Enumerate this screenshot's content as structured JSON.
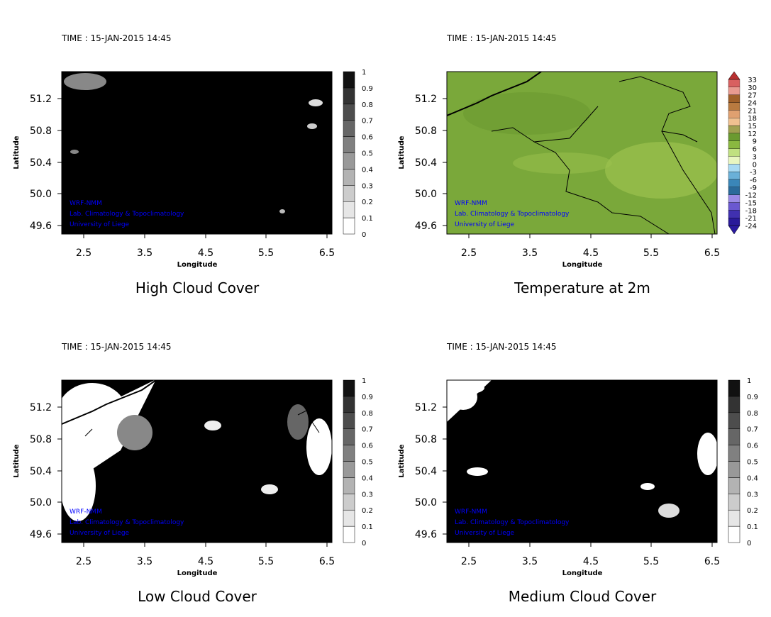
{
  "panels": [
    {
      "id": "high-cloud",
      "time": "TIME : 15-JAN-2015 14:45",
      "title": "High Cloud Cover",
      "type": "cloud"
    },
    {
      "id": "temperature",
      "time": "TIME : 15-JAN-2015 14:45",
      "title": "Temperature at 2m",
      "type": "temp"
    },
    {
      "id": "low-cloud",
      "time": "TIME : 15-JAN-2015 14:45",
      "title": "Low Cloud Cover",
      "type": "cloud"
    },
    {
      "id": "medium-cloud",
      "time": "TIME : 15-JAN-2015 14:45",
      "title": "Medium Cloud Cover",
      "type": "cloud"
    }
  ],
  "axes": {
    "xlabel": "Longitude",
    "ylabel": "Latitude",
    "xticks": [
      "2.5",
      "3.5",
      "4.5",
      "5.5",
      "6.5"
    ],
    "yticks": [
      "51.2",
      "50.8",
      "50.4",
      "50.0",
      "49.6"
    ]
  },
  "credits": [
    "WRF-NMM",
    "Lab. Climatology & Topoclimatology",
    "University of Liege"
  ],
  "cloud_colorbar": {
    "labels": [
      "0",
      "0.1",
      "0.2",
      "0.3",
      "0.4",
      "0.5",
      "0.6",
      "0.7",
      "0.8",
      "0.9",
      "1"
    ]
  },
  "temp_colorbar": {
    "labels": [
      "-24",
      "-21",
      "-18",
      "-15",
      "-12",
      "-9",
      "-6",
      "-3",
      "0",
      "3",
      "6",
      "9",
      "12",
      "15",
      "18",
      "21",
      "24",
      "27",
      "30",
      "33"
    ]
  },
  "colors": {
    "credit": "#0000ff",
    "temp_field": "#7aa83a",
    "temp_light": "#9cc24e",
    "temp_dark": "#6b9a30"
  }
}
